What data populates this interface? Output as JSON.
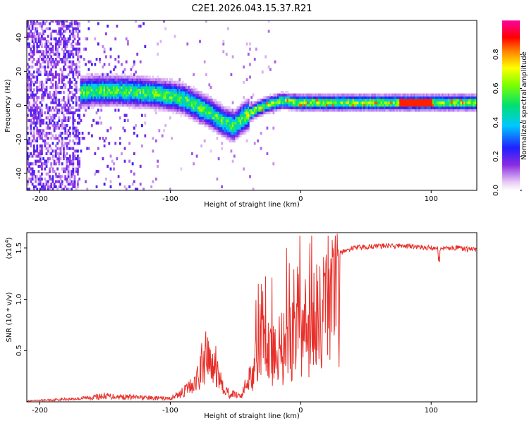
{
  "page": {
    "title": "C2E1.2026.043.15.37.R21"
  },
  "chart_data": [
    {
      "type": "heatmap",
      "title": "C2E1.2026.043.15.37.R21",
      "xlabel": "Height of straight line (km)",
      "ylabel": "Frequency (Hz)",
      "xlim": [
        -210,
        135
      ],
      "ylim": [
        -50,
        50
      ],
      "xticks": [
        -200,
        -100,
        0,
        100
      ],
      "yticks": [
        -40,
        -20,
        0,
        20,
        40
      ],
      "colorbar": {
        "label": "Normalized spectral amplitude",
        "range": [
          0,
          1
        ],
        "ticks": [
          "0.0",
          "0.2",
          "0.4",
          "0.6",
          "0.8"
        ],
        "colormap": "rainbow (white-violet-blue-cyan-green-yellow-red-magenta)"
      },
      "ridge": [
        {
          "x": -175,
          "y": 7
        },
        {
          "x": -160,
          "y": 8
        },
        {
          "x": -140,
          "y": 8
        },
        {
          "x": -120,
          "y": 7
        },
        {
          "x": -100,
          "y": 5
        },
        {
          "x": -90,
          "y": 3
        },
        {
          "x": -80,
          "y": -1
        },
        {
          "x": -70,
          "y": -5
        },
        {
          "x": -60,
          "y": -10
        },
        {
          "x": -52,
          "y": -13
        },
        {
          "x": -45,
          "y": -8
        },
        {
          "x": -35,
          "y": -3
        },
        {
          "x": -25,
          "y": 0
        },
        {
          "x": -15,
          "y": 2
        },
        {
          "x": 0,
          "y": 1
        },
        {
          "x": 50,
          "y": 1
        },
        {
          "x": 100,
          "y": 1
        },
        {
          "x": 135,
          "y": 1
        }
      ]
    },
    {
      "type": "line",
      "xlabel": "Height of straight line (km)",
      "ylabel": "SNR (10 * v/v)",
      "scale_note": "(x10",
      "scale_exp": "4",
      "scale_close": ")",
      "xlim": [
        -210,
        135
      ],
      "ylim": [
        0,
        1.65
      ],
      "xticks": [
        -200,
        -100,
        0,
        100
      ],
      "yticks": [
        "0.5",
        "1.0",
        "1.5"
      ],
      "color": "#e8302a",
      "envelope": [
        {
          "x": -210,
          "y": 0.01
        },
        {
          "x": -170,
          "y": 0.04
        },
        {
          "x": -150,
          "y": 0.07
        },
        {
          "x": -120,
          "y": 0.05
        },
        {
          "x": -100,
          "y": 0.04
        },
        {
          "x": -90,
          "y": 0.12
        },
        {
          "x": -80,
          "y": 0.25
        },
        {
          "x": -72,
          "y": 0.55
        },
        {
          "x": -65,
          "y": 0.35
        },
        {
          "x": -55,
          "y": 0.1
        },
        {
          "x": -45,
          "y": 0.08
        },
        {
          "x": -38,
          "y": 0.4
        },
        {
          "x": -30,
          "y": 0.7
        },
        {
          "x": -20,
          "y": 0.75
        },
        {
          "x": -10,
          "y": 0.8
        },
        {
          "x": 0,
          "y": 0.95
        },
        {
          "x": 10,
          "y": 1.1
        },
        {
          "x": 20,
          "y": 1.3
        },
        {
          "x": 30,
          "y": 1.45
        },
        {
          "x": 40,
          "y": 1.5
        },
        {
          "x": 60,
          "y": 1.52
        },
        {
          "x": 80,
          "y": 1.52
        },
        {
          "x": 100,
          "y": 1.5
        },
        {
          "x": 120,
          "y": 1.5
        },
        {
          "x": 135,
          "y": 1.48
        }
      ]
    }
  ]
}
